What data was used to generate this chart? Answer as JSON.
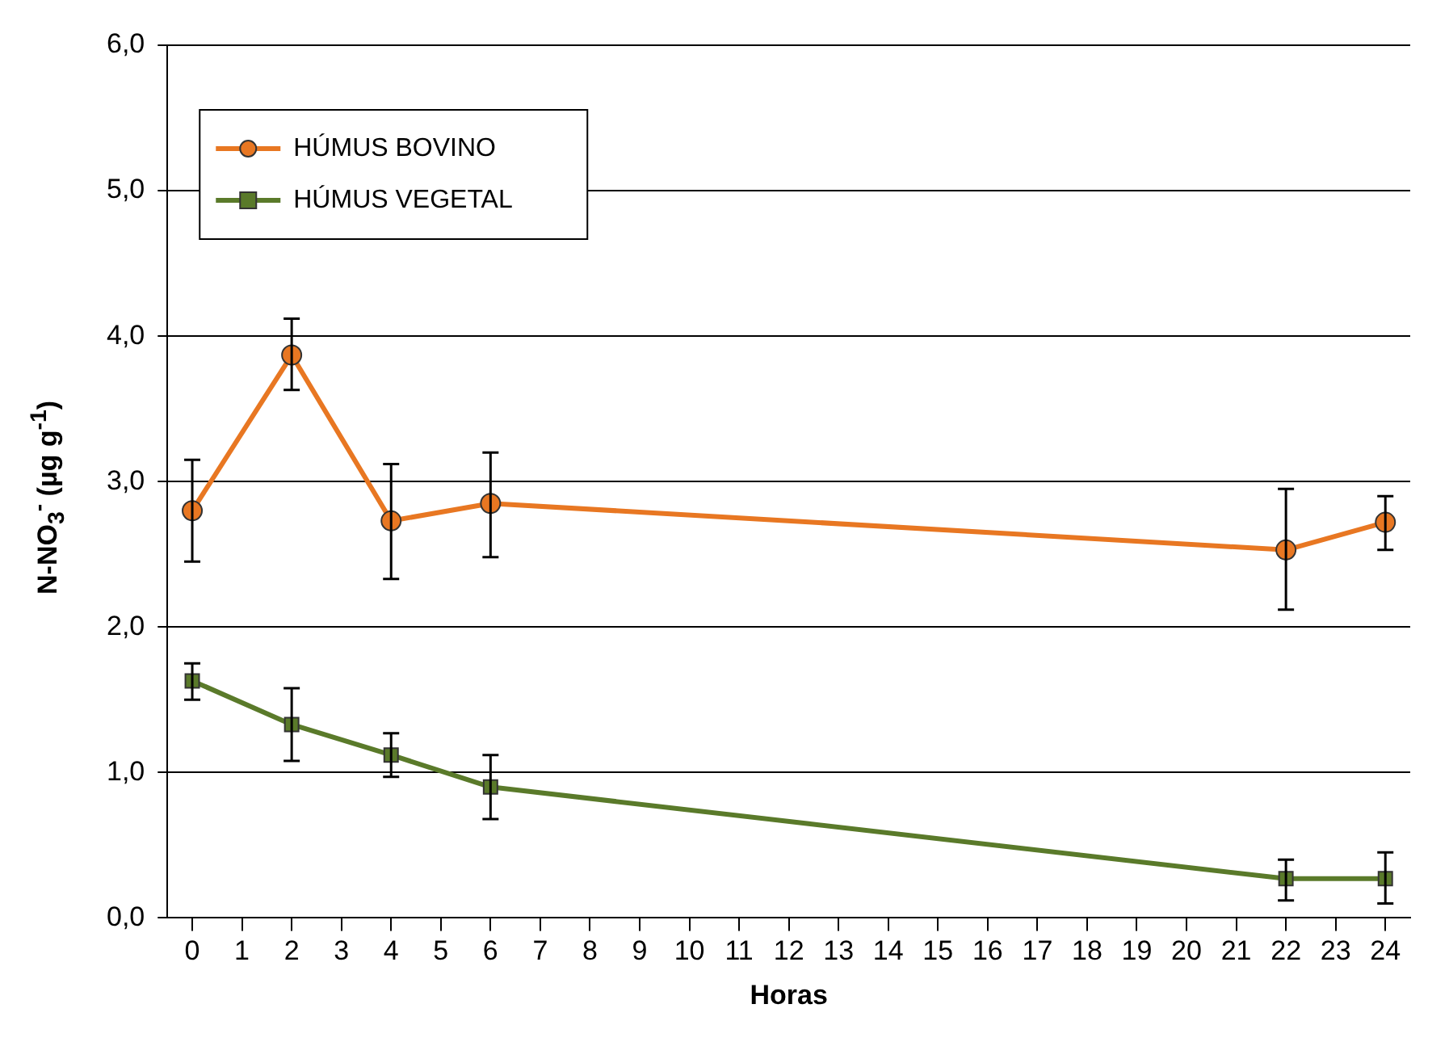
{
  "chart_data": {
    "type": "line",
    "xlabel": "Horas",
    "ylabel": "N-NO$_{3}$$^{-}$ (µg g$^{-1}$)",
    "xlim": [
      -0.5,
      24.5
    ],
    "xticks": [
      0,
      1,
      2,
      3,
      4,
      5,
      6,
      7,
      8,
      9,
      10,
      11,
      12,
      13,
      14,
      15,
      16,
      17,
      18,
      19,
      20,
      21,
      22,
      23,
      24
    ],
    "ylim": [
      0,
      6
    ],
    "yticks": [
      {
        "value": 0,
        "label": "0,0"
      },
      {
        "value": 1,
        "label": "1,0"
      },
      {
        "value": 2,
        "label": "2,0"
      },
      {
        "value": 3,
        "label": "3,0"
      },
      {
        "value": 4,
        "label": "4,0"
      },
      {
        "value": 5,
        "label": "5,0"
      },
      {
        "value": 6,
        "label": "6,0"
      }
    ],
    "grid": "y",
    "legend": "top left",
    "series": [
      {
        "name": "HÚMUS BOVINO",
        "color": "#e87722",
        "marker": "circle",
        "x": [
          0,
          2,
          4,
          6,
          22,
          24
        ],
        "values": [
          2.8,
          3.87,
          2.73,
          2.85,
          2.53,
          2.72
        ],
        "errors": [
          [
            2.45,
            3.15
          ],
          [
            3.63,
            4.12
          ],
          [
            2.33,
            3.12
          ],
          [
            2.48,
            3.2
          ],
          [
            2.12,
            2.95
          ],
          [
            2.53,
            2.9
          ]
        ]
      },
      {
        "name": "HÚMUS VEGETAL",
        "color": "#5a7a2a",
        "marker": "square",
        "x": [
          0,
          2,
          4,
          6,
          22,
          24
        ],
        "values": [
          1.63,
          1.33,
          1.12,
          0.9,
          0.27,
          0.27
        ],
        "errors": [
          [
            1.5,
            1.75
          ],
          [
            1.08,
            1.58
          ],
          [
            0.97,
            1.27
          ],
          [
            0.68,
            1.12
          ],
          [
            0.12,
            0.4
          ],
          [
            0.1,
            0.45
          ]
        ]
      }
    ]
  }
}
